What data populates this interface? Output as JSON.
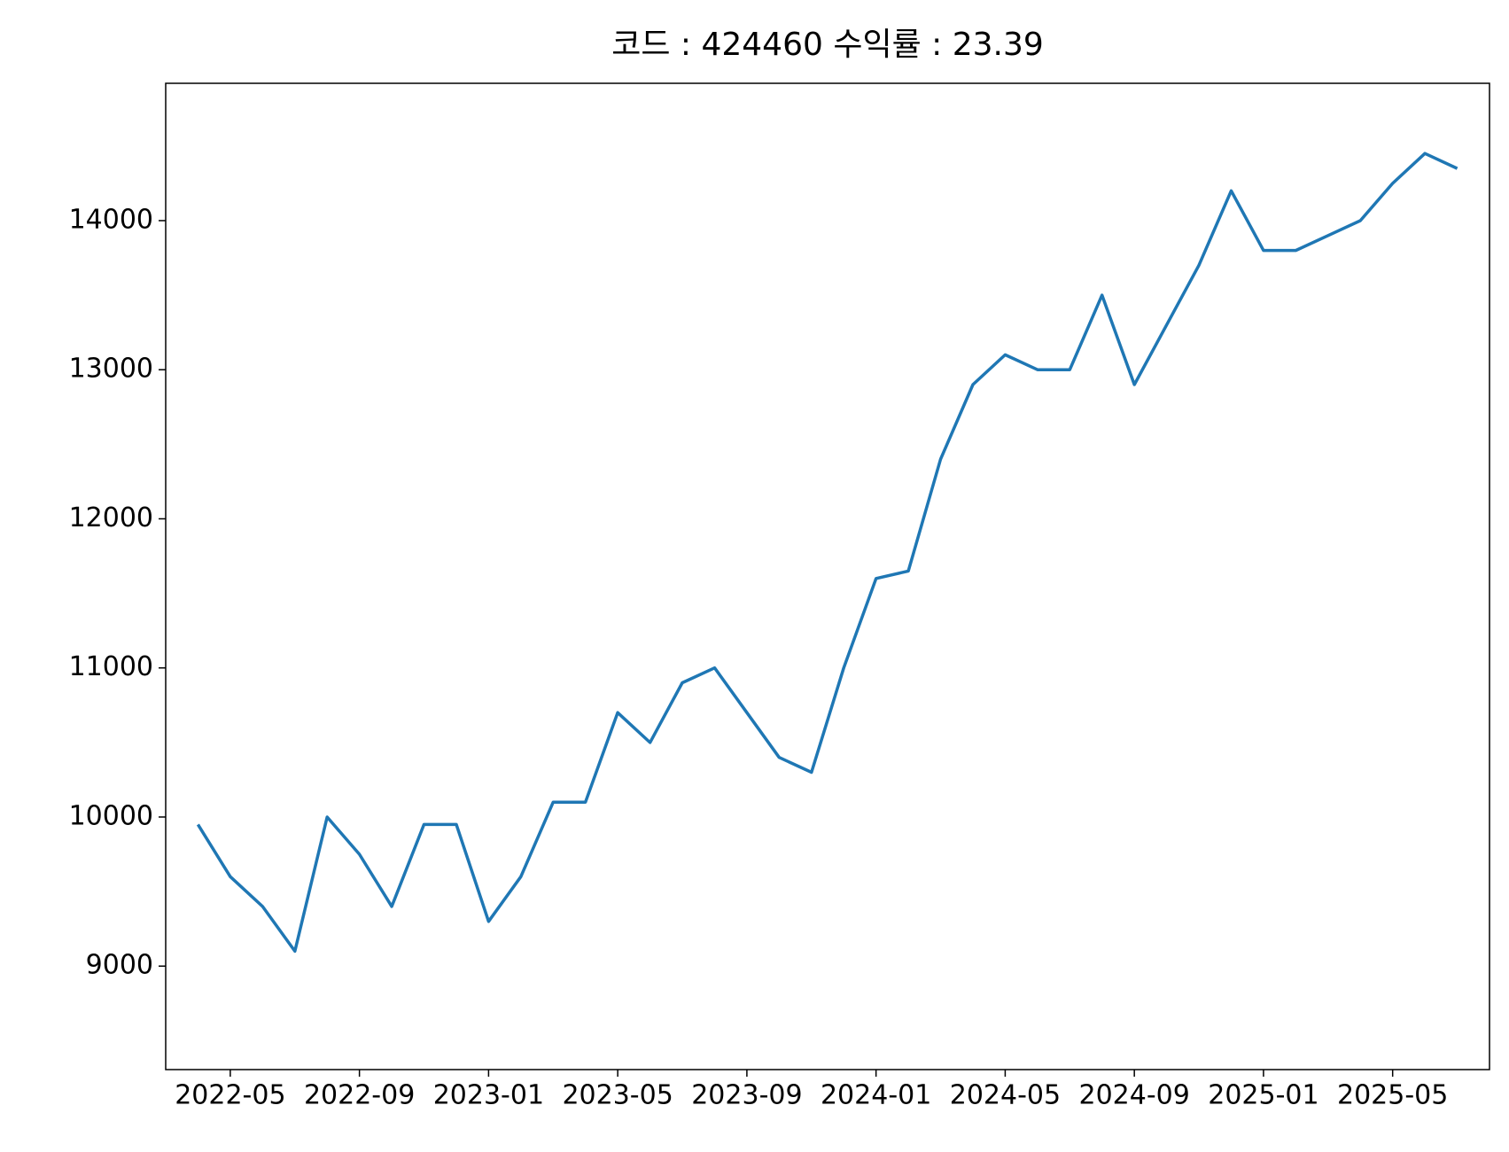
{
  "chart_data": {
    "type": "line",
    "title": "코드 : 424460 수익률 : 23.39",
    "x": [
      "2022-04",
      "2022-05",
      "2022-06",
      "2022-07",
      "2022-08",
      "2022-09",
      "2022-10",
      "2022-11",
      "2022-12",
      "2023-01",
      "2023-02",
      "2023-03",
      "2023-04",
      "2023-05",
      "2023-06",
      "2023-07",
      "2023-08",
      "2023-09",
      "2023-10",
      "2023-11",
      "2023-12",
      "2024-01",
      "2024-02",
      "2024-03",
      "2024-04",
      "2024-05",
      "2024-06",
      "2024-07",
      "2024-08",
      "2024-09",
      "2024-10",
      "2024-11",
      "2024-12",
      "2025-01",
      "2025-02",
      "2025-03",
      "2025-04",
      "2025-05",
      "2025-06",
      "2025-07"
    ],
    "series": [
      {
        "color": "#1f77b4",
        "values": [
          9950,
          9600,
          9400,
          9100,
          10000,
          9750,
          9400,
          9950,
          9950,
          9300,
          9600,
          10100,
          10100,
          10700,
          10500,
          10900,
          11000,
          10700,
          10400,
          10300,
          11000,
          11600,
          11650,
          12400,
          12900,
          13100,
          13000,
          13000,
          13500,
          12900,
          13300,
          13700,
          14200,
          13800,
          13800,
          13900,
          14000,
          14250,
          14450,
          14350
        ]
      }
    ],
    "xlim": [
      "2022-03",
      "2025-08"
    ],
    "xticks": [
      "2022-05",
      "2022-09",
      "2023-01",
      "2023-05",
      "2023-09",
      "2024-01",
      "2024-05",
      "2024-09",
      "2025-01",
      "2025-05"
    ],
    "ylim": [
      8306,
      14921
    ],
    "yticks": [
      9000,
      10000,
      11000,
      12000,
      13000,
      14000
    ]
  }
}
